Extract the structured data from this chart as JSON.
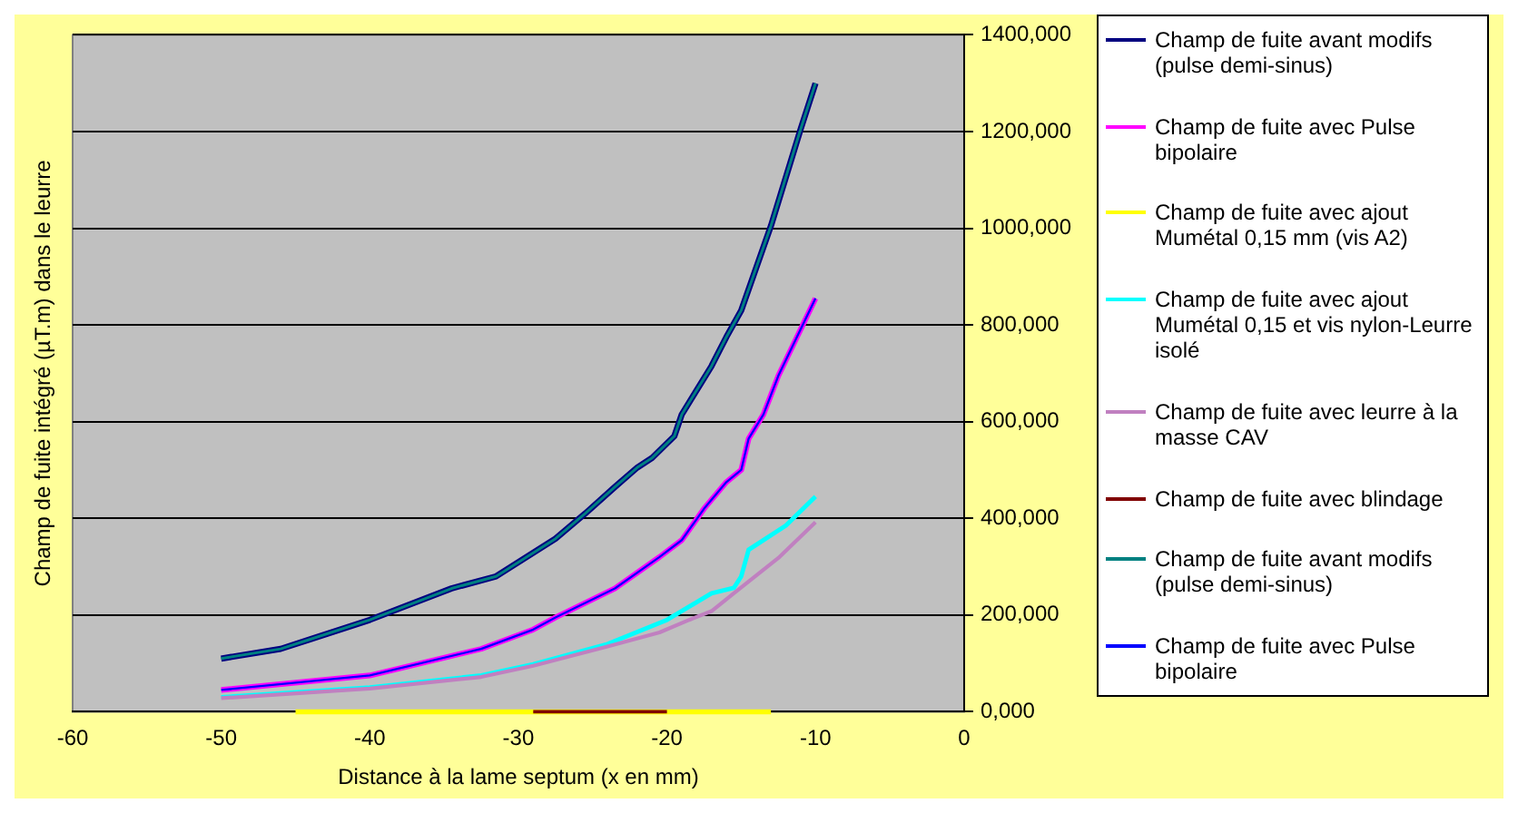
{
  "chart_data": {
    "type": "line",
    "xlabel": "Distance à la lame septum (x en mm)",
    "ylabel": "Champ de fuite intégré (µT.m) dans le leurre",
    "xlim": [
      -60,
      0
    ],
    "xticks": [
      -60,
      -50,
      -40,
      -30,
      -20,
      -10,
      0
    ],
    "ylim": [
      0,
      1400
    ],
    "yticks": [
      {
        "value": 0,
        "label": "0,000"
      },
      {
        "value": 200,
        "label": "200,000"
      },
      {
        "value": 400,
        "label": "400,000"
      },
      {
        "value": 600,
        "label": "600,000"
      },
      {
        "value": 800,
        "label": "800,000"
      },
      {
        "value": 1000,
        "label": "1000,000"
      },
      {
        "value": 1200,
        "label": "1200,000"
      },
      {
        "value": 1400,
        "label": "1400,000"
      }
    ],
    "grid": "y",
    "legend": "right",
    "marker": "none",
    "line_style": "solid",
    "series": [
      {
        "name": "Champ de fuite avant modifs (pulse demi-sinus)",
        "color": "#000080",
        "x": [
          -50,
          -46,
          -44,
          -40,
          -34.5,
          -31.5,
          -27.5,
          -25.5,
          -23.5,
          -22,
          -21,
          -19.5,
          -19,
          -17,
          -16,
          -15,
          -13,
          -11,
          -10
        ],
        "values": [
          110,
          130,
          150,
          190,
          255,
          280,
          358,
          410,
          465,
          505,
          525,
          570,
          615,
          715,
          775,
          830,
          1005,
          1205,
          1300
        ]
      },
      {
        "name": "Champ de fuite avec Pulse bipolaire",
        "color": "#ff00ff",
        "x": [
          -50,
          -40,
          -32.5,
          -29,
          -27.5,
          -23.5,
          -20.5,
          -19,
          -17.5,
          -16,
          -15,
          -14.5,
          -13.5,
          -12.5,
          -10
        ],
        "values": [
          45,
          75,
          130,
          170,
          195,
          255,
          320,
          355,
          420,
          475,
          500,
          565,
          615,
          695,
          855
        ]
      },
      {
        "name": "Champ de fuite avec ajout Mumétal 0,15 mm (vis A2)",
        "color": "#ffff00",
        "x": [
          -45,
          -13
        ],
        "values": [
          0,
          0
        ]
      },
      {
        "name": "Champ de fuite avec ajout Mumétal 0,15 et vis nylon-Leurre isolé",
        "color": "#00ffff",
        "x": [
          -50,
          -40,
          -32.5,
          -29,
          -24,
          -20,
          -17,
          -15.5,
          -15,
          -14.5,
          -12,
          -10
        ],
        "values": [
          30,
          50,
          75,
          98,
          140,
          190,
          245,
          256,
          280,
          335,
          385,
          445
        ]
      },
      {
        "name": "Champ de fuite avec leurre à la masse CAV",
        "color": "#c080c0",
        "x": [
          -50,
          -40,
          -32.5,
          -29,
          -24,
          -20.5,
          -18.5,
          -17,
          -15.5,
          -12.5,
          -10
        ],
        "values": [
          28,
          48,
          72,
          95,
          135,
          164,
          190,
          208,
          245,
          318,
          392
        ]
      },
      {
        "name": "Champ de fuite avec blindage",
        "color": "#800000",
        "x": [
          -29,
          -20
        ],
        "values": [
          0,
          0
        ]
      },
      {
        "name": "Champ de fuite avant modifs (pulse demi-sinus)",
        "color": "#008080",
        "x": [
          -50,
          -46,
          -44,
          -40,
          -34.5,
          -31.5,
          -27.5,
          -25.5,
          -23.5,
          -22,
          -21,
          -19.5,
          -19,
          -17,
          -16,
          -15,
          -13,
          -11,
          -10
        ],
        "values": [
          110,
          130,
          150,
          190,
          255,
          280,
          358,
          410,
          465,
          505,
          525,
          570,
          615,
          715,
          775,
          830,
          1005,
          1205,
          1300
        ]
      },
      {
        "name": "Champ de fuite avec Pulse bipolaire",
        "color": "#0000ff",
        "x": [
          -50,
          -40,
          -32.5,
          -29,
          -27.5,
          -23.5,
          -20.5,
          -19,
          -17.5,
          -16,
          -15,
          -14.5,
          -13.5,
          -12.5,
          -10
        ],
        "values": [
          45,
          75,
          130,
          170,
          195,
          255,
          320,
          355,
          420,
          475,
          500,
          565,
          615,
          695,
          855
        ]
      }
    ]
  }
}
